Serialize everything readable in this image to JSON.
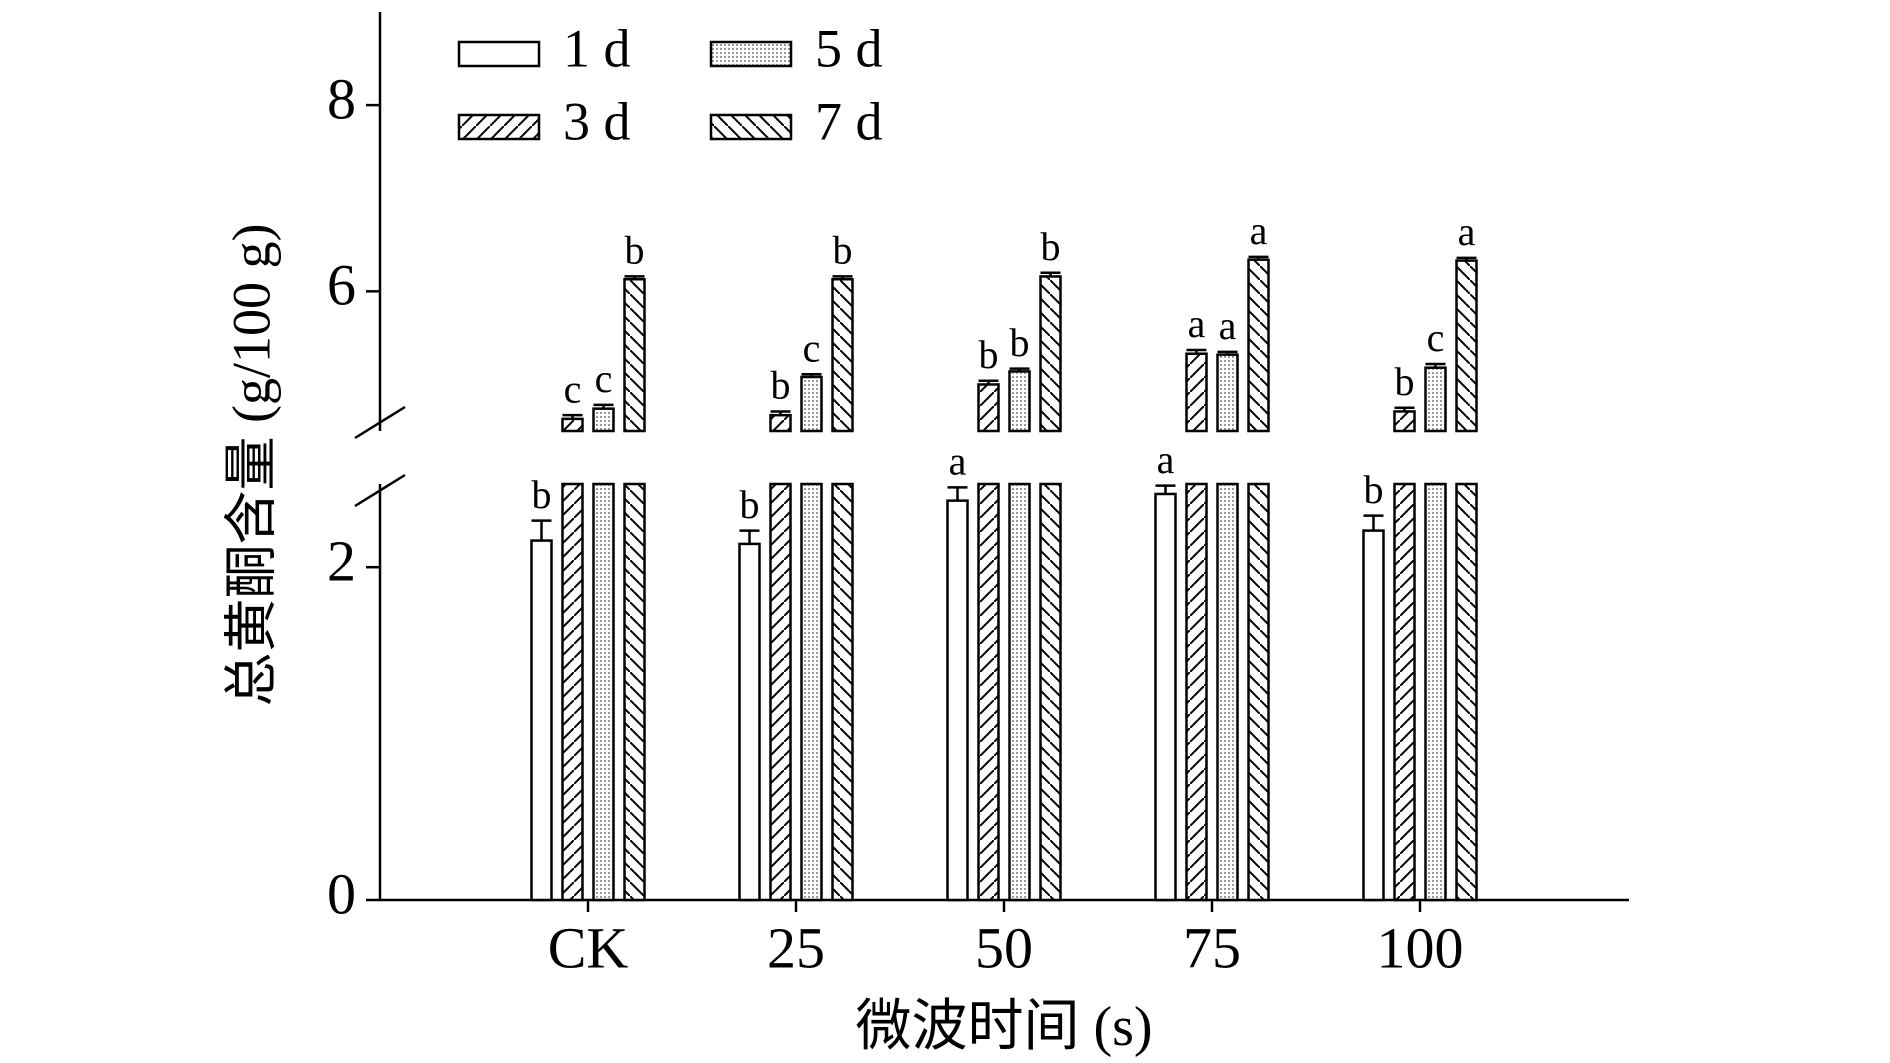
{
  "chart_data": {
    "type": "bar",
    "y_label": "总黄酮含量 (g/100 g)",
    "x_label": "微波时间 (s)",
    "categories": [
      "CK",
      "25",
      "50",
      "75",
      "100"
    ],
    "ylim": [
      0,
      9
    ],
    "ybreak": [
      2.5,
      4.5
    ],
    "yticks": [
      0,
      2,
      6,
      8
    ],
    "series": [
      {
        "name": "1 d",
        "color": "#000000",
        "hatch": "none",
        "values": [
          2.16,
          2.14,
          2.4,
          2.44,
          2.22
        ],
        "errors": [
          0.12,
          0.08,
          0.08,
          0.05,
          0.09
        ],
        "letters": [
          "b",
          "b",
          "a",
          "a",
          "b"
        ]
      },
      {
        "name": "3 d",
        "color": "#000000",
        "hatch": "forward",
        "values": [
          4.63,
          4.67,
          5.0,
          5.33,
          4.71
        ],
        "errors": [
          0.04,
          0.04,
          0.04,
          0.04,
          0.04
        ],
        "letters": [
          "c",
          "b",
          "b",
          "a",
          "b"
        ]
      },
      {
        "name": "5 d",
        "color": "#000000",
        "hatch": "dots",
        "values": [
          4.74,
          5.08,
          5.14,
          5.32,
          5.18
        ],
        "errors": [
          0.04,
          0.03,
          0.03,
          0.03,
          0.04
        ],
        "letters": [
          "c",
          "c",
          "b",
          "a",
          "c"
        ]
      },
      {
        "name": "7 d",
        "color": "#000000",
        "hatch": "back",
        "values": [
          6.13,
          6.13,
          6.16,
          6.34,
          6.33
        ],
        "errors": [
          0.03,
          0.03,
          0.04,
          0.03,
          0.03
        ],
        "letters": [
          "b",
          "b",
          "b",
          "a",
          "a"
        ]
      }
    ]
  }
}
